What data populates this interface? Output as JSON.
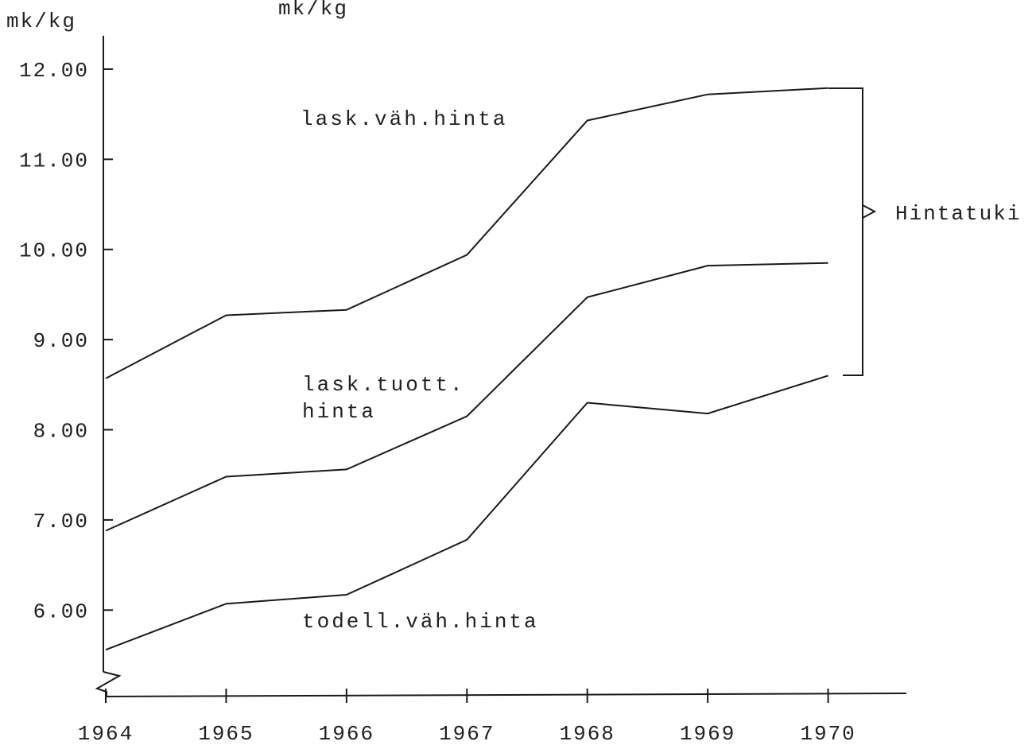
{
  "chart_data": {
    "type": "line",
    "ylabel": "mk/kg",
    "annotations": [
      "mk/kg",
      "Hintatuki"
    ],
    "x": [
      1964,
      1965,
      1966,
      1967,
      1968,
      1969,
      1970
    ],
    "xlim": [
      1964,
      1970.65
    ],
    "xticks": [
      1964,
      1965,
      1966,
      1967,
      1968,
      1969,
      1970
    ],
    "ylim": [
      5.05,
      12.37
    ],
    "yticks": [
      {
        "value": 6,
        "label": "6.00"
      },
      {
        "value": 7,
        "label": "7.00"
      },
      {
        "value": 8,
        "label": "8.00"
      },
      {
        "value": 9,
        "label": "9.00"
      },
      {
        "value": 10,
        "label": "10.00"
      },
      {
        "value": 11,
        "label": "11.00"
      },
      {
        "value": 12,
        "label": "12.00"
      }
    ],
    "series": [
      {
        "name": "lask.väh.hinta",
        "color": "#1a1a1a",
        "values": [
          8.57,
          9.27,
          9.33,
          9.94,
          11.43,
          11.72,
          11.79
        ]
      },
      {
        "name": "lask.tuott. hinta",
        "color": "#1a1a1a",
        "values": [
          6.88,
          7.48,
          7.56,
          8.15,
          9.47,
          9.82,
          9.85
        ]
      },
      {
        "name": "todell.väh.hinta",
        "color": "#1a1a1a",
        "values": [
          5.56,
          6.07,
          6.17,
          6.78,
          8.3,
          8.18,
          8.6
        ]
      }
    ]
  }
}
